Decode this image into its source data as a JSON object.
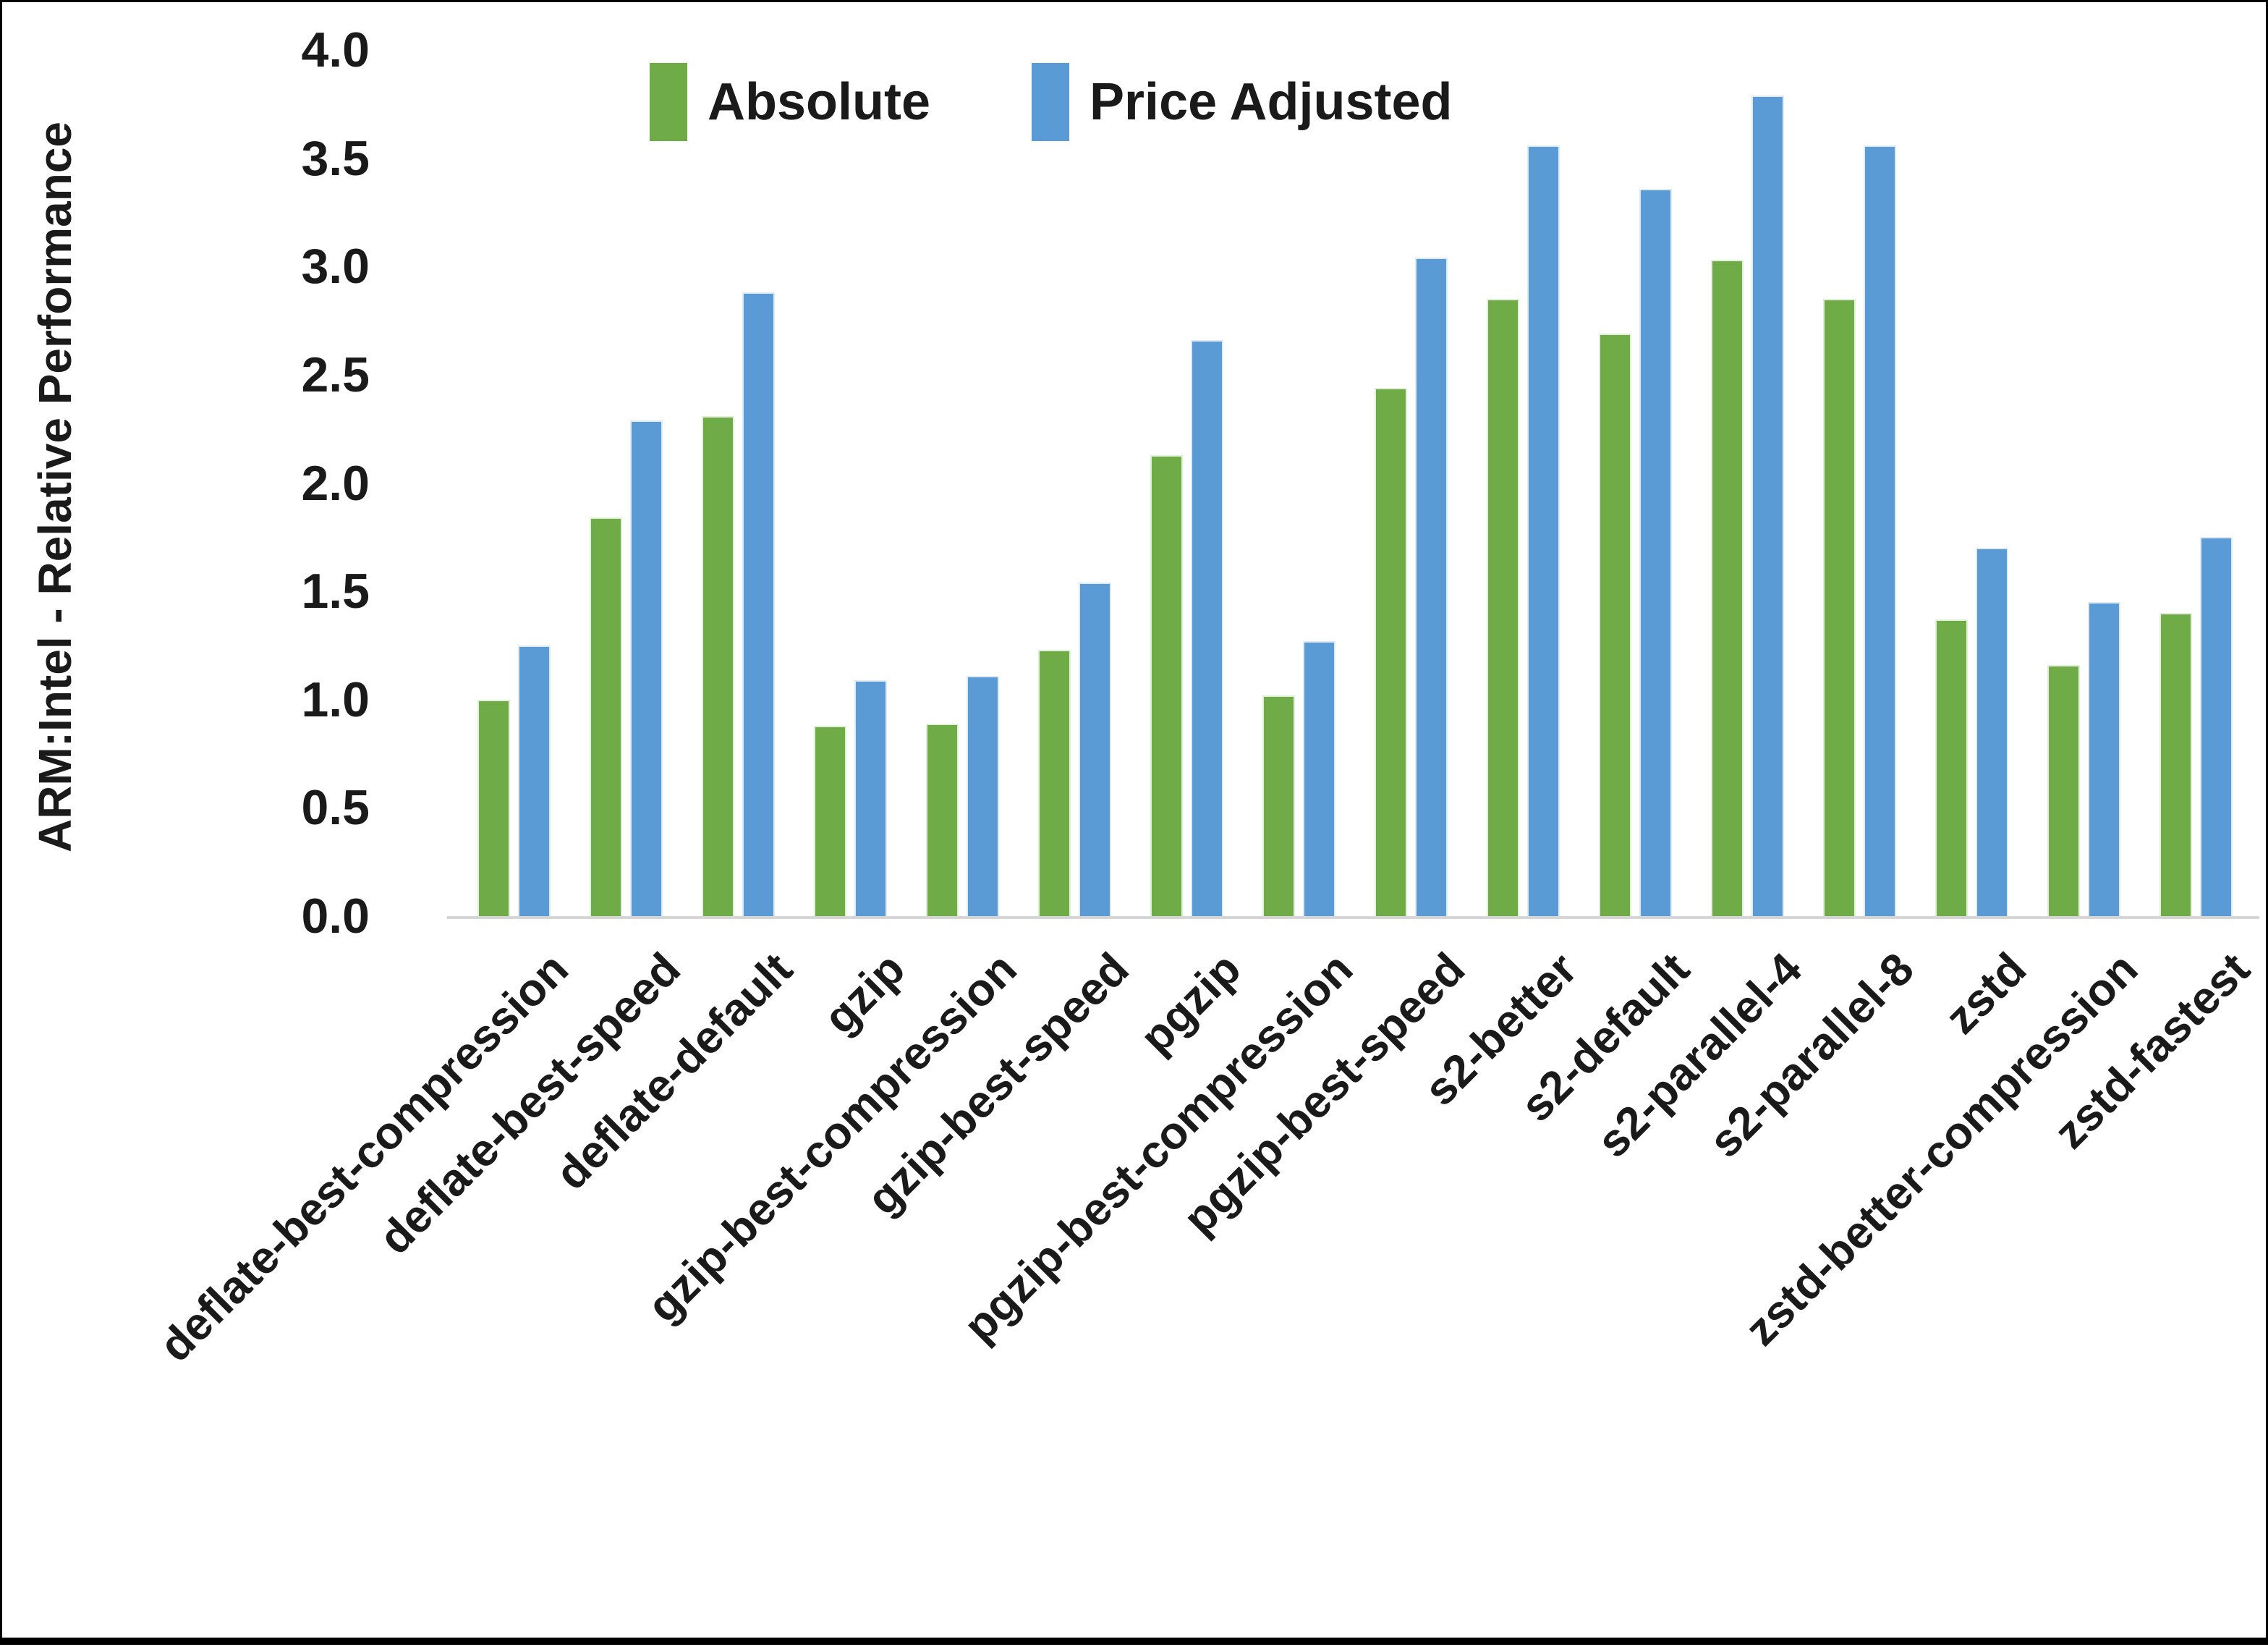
{
  "chart_data": {
    "type": "bar",
    "title": "",
    "xlabel": "",
    "ylabel": "ARM:Intel - Relative Performance",
    "ylim": [
      0.0,
      4.0
    ],
    "ytick_step": 0.5,
    "ytick_labels": [
      "4.0",
      "3.5",
      "3.0",
      "2.5",
      "2.0",
      "1.5",
      "1.0",
      "0.5",
      "0.0"
    ],
    "grid": false,
    "legend_position": "top-center",
    "axis_line_color": "#d6d6d6",
    "categories": [
      "deflate-best-compression",
      "deflate-best-speed",
      "deflate-default",
      "gzip",
      "gzip-best-compression",
      "gzip-best-speed",
      "pgzip",
      "pgzip-best-compression",
      "pgzip-best-speed",
      "s2-better",
      "s2-default",
      "s2-parallel-4",
      "s2-parallel-8",
      "zstd",
      "zstd-better-compression",
      "zstd-fastest"
    ],
    "series": [
      {
        "name": "Absolute",
        "color": "#6FAC47",
        "values": [
          1.0,
          1.84,
          2.31,
          0.88,
          0.89,
          1.23,
          2.13,
          1.02,
          2.44,
          2.85,
          2.69,
          3.03,
          2.85,
          1.37,
          1.16,
          1.4
        ]
      },
      {
        "name": "Price Adjusted",
        "color": "#5B9BD5",
        "values": [
          1.25,
          2.29,
          2.88,
          1.09,
          1.11,
          1.54,
          2.66,
          1.27,
          3.04,
          3.56,
          3.36,
          3.79,
          3.56,
          1.7,
          1.45,
          1.75
        ]
      }
    ]
  }
}
